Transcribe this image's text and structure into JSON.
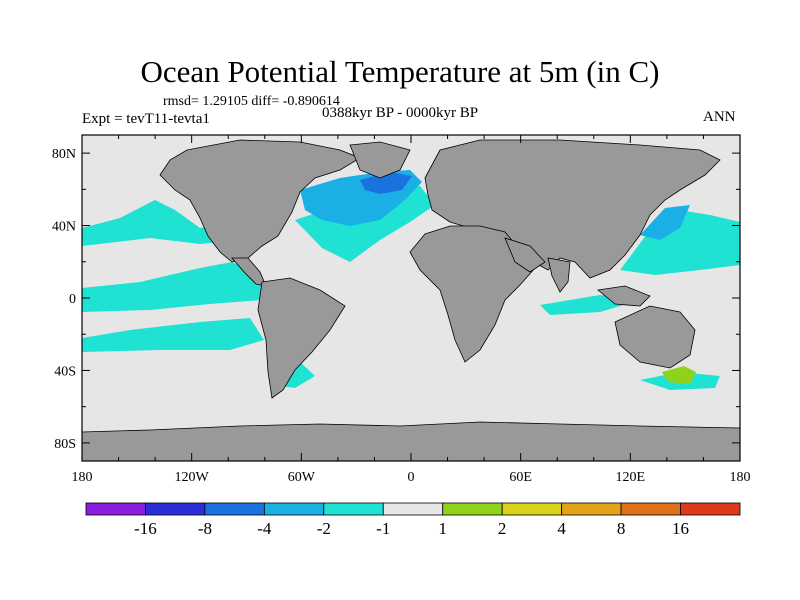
{
  "header": {
    "title": "Ocean Potential Temperature at 5m (in C)",
    "stats": "rmsd= 1.29105 diff= -0.890614",
    "expt": "Expt = tevT11-tevta1",
    "period": "0388kyr BP - 0000kyr BP",
    "season": "ANN"
  },
  "chart_data": {
    "type": "heatmap",
    "title": "Ocean Potential Temperature at 5m (in C)",
    "subtitle": "0388kyr BP - 0000kyr BP",
    "variable": "potential temperature difference",
    "units": "C",
    "rmsd": 1.29105,
    "diff": -0.890614,
    "xlim": [
      -180,
      180
    ],
    "ylim": [
      -90,
      90
    ],
    "x_ticks": [
      {
        "value": -180,
        "label": "180"
      },
      {
        "value": -120,
        "label": "120W"
      },
      {
        "value": -60,
        "label": "60W"
      },
      {
        "value": 0,
        "label": "0"
      },
      {
        "value": 60,
        "label": "60E"
      },
      {
        "value": 120,
        "label": "120E"
      },
      {
        "value": 180,
        "label": "180"
      }
    ],
    "y_ticks": [
      {
        "value": 80,
        "label": "80N"
      },
      {
        "value": 40,
        "label": "40N"
      },
      {
        "value": 0,
        "label": "0"
      },
      {
        "value": -40,
        "label": "40S"
      },
      {
        "value": -80,
        "label": "80S"
      }
    ],
    "colorbar": {
      "bins": [
        {
          "min": null,
          "max": -16,
          "color": "#8b1fe0"
        },
        {
          "min": -16,
          "max": -8,
          "color": "#2c2fd6"
        },
        {
          "min": -8,
          "max": -4,
          "color": "#1a72de"
        },
        {
          "min": -4,
          "max": -2,
          "color": "#1ab0e6"
        },
        {
          "min": -2,
          "max": -1,
          "color": "#1fe2d2"
        },
        {
          "min": -1,
          "max": 1,
          "color": "#e6e6e6"
        },
        {
          "min": 1,
          "max": 2,
          "color": "#8fd21a"
        },
        {
          "min": 2,
          "max": 4,
          "color": "#d8d21a"
        },
        {
          "min": 4,
          "max": 8,
          "color": "#e2a31a"
        },
        {
          "min": 8,
          "max": 16,
          "color": "#e0701a"
        },
        {
          "min": 16,
          "max": null,
          "color": "#e0381a"
        }
      ],
      "labels": [
        "-16",
        "-8",
        "-4",
        "-2",
        "-1",
        "1",
        "2",
        "4",
        "8",
        "16"
      ]
    },
    "land_color": "#999999",
    "neutral_color": "#e6e6e6"
  }
}
